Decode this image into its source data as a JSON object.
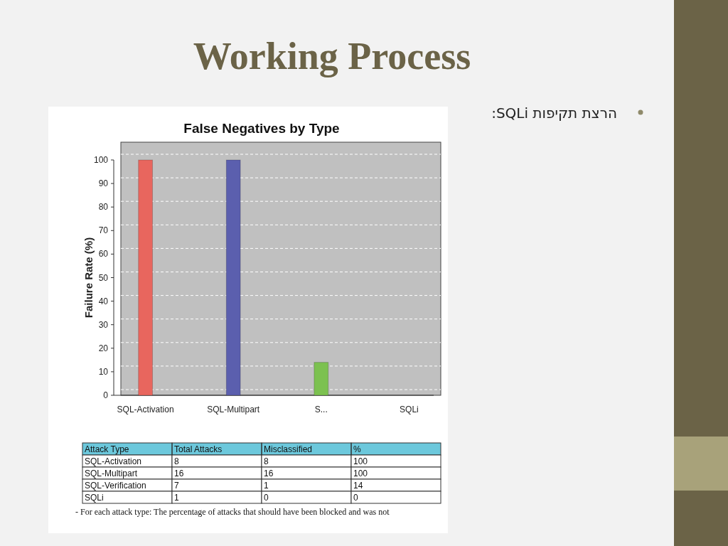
{
  "chart_data": [
    {
      "type": "other",
      "title": "Working Process",
      "annotations": [
        "הרצת תקיפות SQLi:"
      ]
    },
    {
      "type": "bar",
      "title": "False Negatives by Type",
      "ylabel": "Failure Rate (%)",
      "categories": [
        "SQL-Activation",
        "SQL-Multipart",
        "S...",
        "SQLi"
      ],
      "values": [
        100,
        100,
        14,
        0
      ],
      "colors": [
        "#e8665e",
        "#5b5fae",
        "#7cc150",
        "#f2ef7a"
      ],
      "ylim": [
        0,
        100
      ],
      "yticks": [
        0,
        10,
        20,
        30,
        40,
        50,
        60,
        70,
        80,
        90,
        100
      ],
      "grid": "y"
    },
    {
      "type": "other",
      "categories": [
        "Attack Type",
        "Total Attacks",
        "Misclassified",
        "%"
      ],
      "cell_labels": [
        [
          "SQL-Activation",
          "8",
          "8",
          "100"
        ],
        [
          "SQL-Multipart",
          "16",
          "16",
          "100"
        ],
        [
          "SQL-Verification",
          "7",
          "1",
          "14"
        ],
        [
          "SQLi",
          "1",
          "0",
          "0"
        ]
      ],
      "annotations": [
        "- For each attack type: The percentage of attacks that should have been blocked and was not"
      ]
    }
  ]
}
